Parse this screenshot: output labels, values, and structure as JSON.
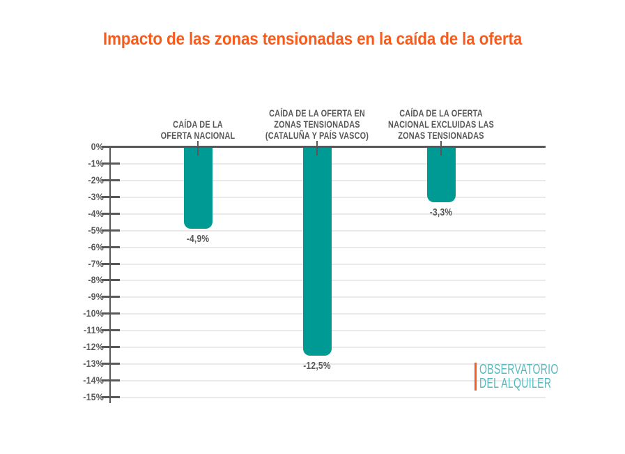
{
  "page": {
    "background": "#ffffff"
  },
  "title": {
    "text": "Impacto de las zonas tensionadas en la caída de la oferta",
    "color": "#f85c1d"
  },
  "watermark": {
    "line1": "OBSERVATORIO",
    "line2": "DEL ALQUILER",
    "color": "#58b9be",
    "accent_color": "#f85c1d"
  },
  "chart_data": {
    "type": "bar",
    "orientation": "vertical",
    "title": "Impacto de las zonas tensionadas en la caída de la oferta",
    "categories": [
      "CAÍDA DE LA OFERTA NACIONAL",
      "CAÍDA DE LA OFERTA EN ZONAS TENSIONADAS (CATALUÑA Y PAÍS VASCO)",
      "CAÍDA DE LA OFERTA NACIONAL EXCLUIDAS LAS ZONAS TENSIONADAS"
    ],
    "categories_lines": [
      [
        "CAÍDA DE LA",
        "OFERTA NACIONAL"
      ],
      [
        "CAÍDA DE LA OFERTA EN",
        "ZONAS TENSIONADAS",
        "(CATALUÑA Y PAÍS VASCO)"
      ],
      [
        "CAÍDA DE LA OFERTA",
        "NACIONAL EXCLUIDAS LAS",
        "ZONAS TENSIONADAS"
      ]
    ],
    "values": [
      -4.9,
      -12.5,
      -3.3
    ],
    "value_labels": [
      "-4,9%",
      "-12,5%",
      "-3,3%"
    ],
    "xlabel": "",
    "ylabel": "",
    "ylim": [
      -15,
      0
    ],
    "ytick_step": 1,
    "ytick_labels": [
      "0%",
      "-1%",
      "-2%",
      "-3%",
      "-4%",
      "-5%",
      "-6%",
      "-7%",
      "-8%",
      "-9%",
      "-10%",
      "-11%",
      "-12%",
      "-13%",
      "-14%",
      "-15%"
    ],
    "grid": true,
    "legend": "none",
    "bar_color": "#009a94",
    "axis_color": "#58585a",
    "grid_color": "#eaeaea",
    "label_color": "#58585a"
  }
}
